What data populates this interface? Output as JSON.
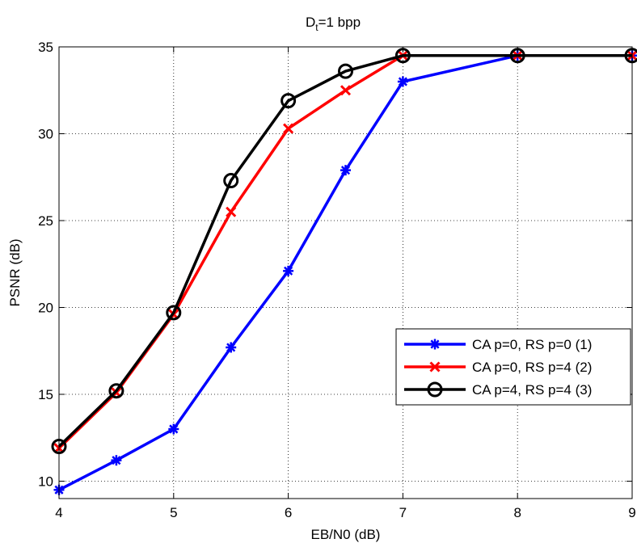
{
  "chart_data": {
    "type": "line",
    "title_main": "D",
    "title_sub": "t",
    "title_rest": "=1 bpp",
    "xlabel": "EB/N0 (dB)",
    "ylabel": "PSNR (dB)",
    "xlim": [
      4,
      9
    ],
    "ylim": [
      9,
      35
    ],
    "xticks": [
      4,
      5,
      6,
      7,
      8,
      9
    ],
    "yticks": [
      10,
      15,
      20,
      25,
      30,
      35
    ],
    "grid": true,
    "legend_position": "lower-right",
    "series": [
      {
        "name": "CA p=0, RS p=0 (1)",
        "color": "#0000ff",
        "marker": "asterisk",
        "x": [
          4,
          4.5,
          5,
          5.5,
          6,
          6.5,
          7,
          8,
          9
        ],
        "y": [
          9.5,
          11.2,
          13.0,
          17.7,
          22.1,
          27.9,
          33.0,
          34.5,
          34.5
        ]
      },
      {
        "name": "CA p=0, RS p=4 (2)",
        "color": "#ff0000",
        "marker": "x",
        "x": [
          4,
          4.5,
          5,
          5.5,
          6,
          6.5,
          7,
          8,
          9
        ],
        "y": [
          11.9,
          15.1,
          19.6,
          25.5,
          30.3,
          32.5,
          34.5,
          34.5,
          34.5
        ]
      },
      {
        "name": "CA p=4, RS p=4 (3)",
        "color": "#000000",
        "marker": "circle",
        "x": [
          4,
          4.5,
          5,
          5.5,
          6,
          6.5,
          7,
          8,
          9
        ],
        "y": [
          12.0,
          15.2,
          19.7,
          27.3,
          31.9,
          33.6,
          34.5,
          34.5,
          34.5
        ]
      }
    ]
  }
}
